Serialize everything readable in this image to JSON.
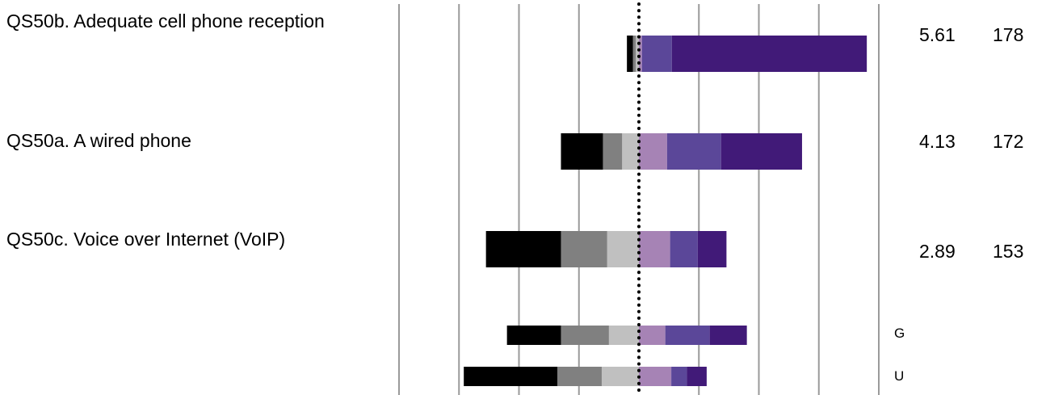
{
  "chart_data": {
    "type": "bar",
    "stacked": "diverging",
    "center_value": 0,
    "xlim": [
      -40,
      40
    ],
    "gridlines_at": [
      -40,
      -30,
      -20,
      -10,
      0,
      10,
      20,
      30,
      40
    ],
    "center_line": "dotted",
    "segment_colors": [
      "#000000",
      "#808080",
      "#c0c0c0",
      "#a683b5",
      "#5b4799",
      "#411a78"
    ],
    "rows": [
      {
        "label": "QS50b. Adequate cell phone reception",
        "mean": "5.61",
        "n": "178",
        "negative": [
          1,
          0.5,
          0.5
        ],
        "positive": [
          0.5,
          5,
          32.5
        ]
      },
      {
        "label": "QS50a. A wired phone",
        "mean": "4.13",
        "n": "172",
        "negative": [
          7,
          3.2,
          2.8
        ],
        "positive": [
          4.7,
          9,
          13.5
        ]
      },
      {
        "label": "QS50c. Voice over Internet (VoIP)",
        "mean": "2.89",
        "n": "153",
        "negative": [
          12.5,
          7.7,
          5.3
        ],
        "positive": [
          5.2,
          4.6,
          4.8
        ]
      },
      {
        "label": "G",
        "negative": [
          9,
          8,
          5
        ],
        "positive": [
          4.4,
          7.4,
          6.2
        ]
      },
      {
        "label": "U",
        "negative": [
          15.6,
          7.4,
          6.2
        ],
        "positive": [
          5.4,
          2.6,
          3.3
        ]
      }
    ]
  }
}
